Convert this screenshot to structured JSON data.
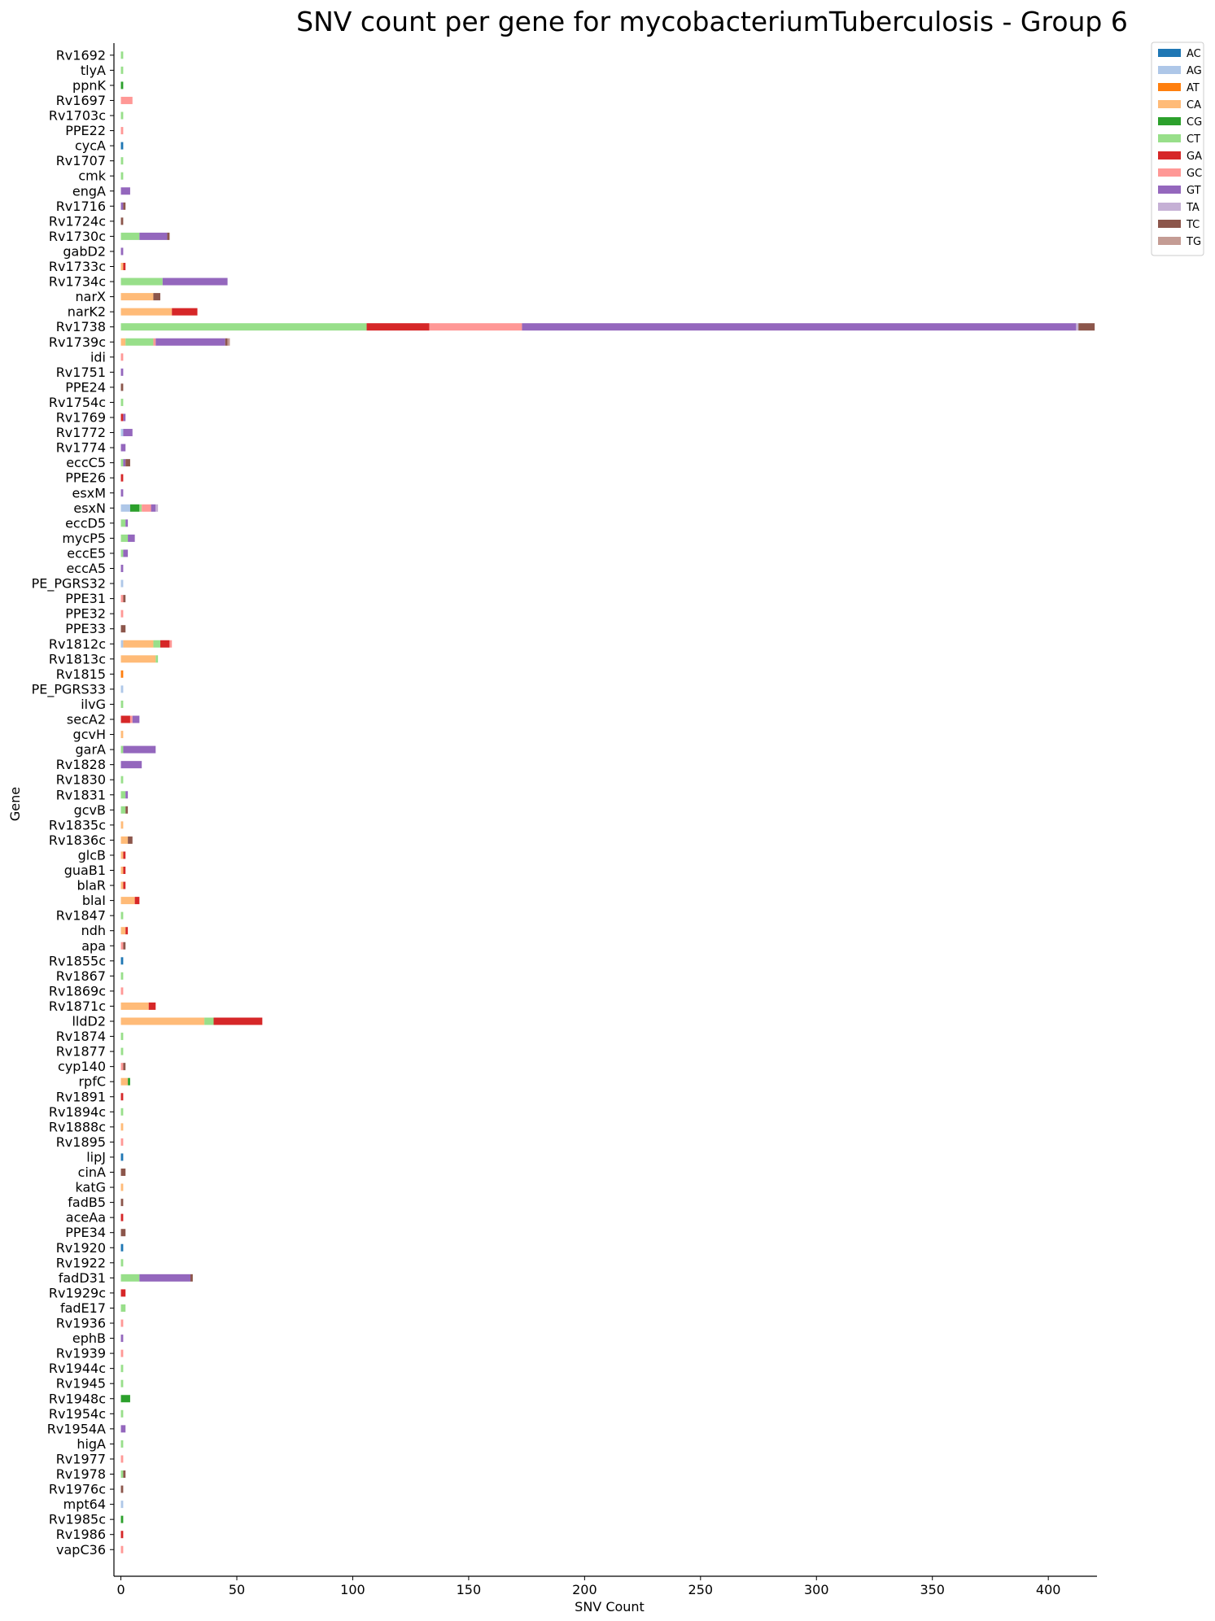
{
  "chart_data": {
    "type": "bar",
    "orientation": "horizontal",
    "stacked": true,
    "title": "SNV count per gene for mycobacteriumTuberculosis - Group 6",
    "xlabel": "SNV Count",
    "ylabel": "Gene",
    "xlim": [
      -3,
      421
    ],
    "xticks": [
      0,
      50,
      100,
      150,
      200,
      250,
      300,
      350,
      400
    ],
    "grid": false,
    "legend_position": "top-right",
    "series": [
      {
        "name": "AC",
        "color": "#1f77b4"
      },
      {
        "name": "AG",
        "color": "#aec7e8"
      },
      {
        "name": "AT",
        "color": "#ff7f0e"
      },
      {
        "name": "CA",
        "color": "#ffbb78"
      },
      {
        "name": "CG",
        "color": "#2ca02c"
      },
      {
        "name": "CT",
        "color": "#98df8a"
      },
      {
        "name": "GA",
        "color": "#d62728"
      },
      {
        "name": "GC",
        "color": "#ff9896"
      },
      {
        "name": "GT",
        "color": "#9467bd"
      },
      {
        "name": "TA",
        "color": "#c5b0d5"
      },
      {
        "name": "TC",
        "color": "#8c564b"
      },
      {
        "name": "TG",
        "color": "#c49c94"
      }
    ],
    "genes": [
      {
        "gene": "Rv1692",
        "counts": {
          "CT": 1
        }
      },
      {
        "gene": "tlyA",
        "counts": {
          "CT": 1
        }
      },
      {
        "gene": "ppnK",
        "counts": {
          "CG": 1
        }
      },
      {
        "gene": "Rv1697",
        "counts": {
          "GC": 5
        }
      },
      {
        "gene": "Rv1703c",
        "counts": {
          "CT": 1
        }
      },
      {
        "gene": "PPE22",
        "counts": {
          "GC": 1
        }
      },
      {
        "gene": "cycA",
        "counts": {
          "AC": 1
        }
      },
      {
        "gene": "Rv1707",
        "counts": {
          "CT": 1
        }
      },
      {
        "gene": "cmk",
        "counts": {
          "CT": 1
        }
      },
      {
        "gene": "engA",
        "counts": {
          "GT": 4
        }
      },
      {
        "gene": "Rv1716",
        "counts": {
          "GT": 1,
          "TC": 1
        }
      },
      {
        "gene": "Rv1724c",
        "counts": {
          "TC": 1
        }
      },
      {
        "gene": "Rv1730c",
        "counts": {
          "CT": 8,
          "TC": 1,
          "GT": 12
        }
      },
      {
        "gene": "gabD2",
        "counts": {
          "GT": 1
        }
      },
      {
        "gene": "Rv1733c",
        "counts": {
          "CA": 1,
          "GA": 1
        }
      },
      {
        "gene": "Rv1734c",
        "counts": {
          "CT": 18,
          "GT": 28
        }
      },
      {
        "gene": "narX",
        "counts": {
          "CA": 14,
          "TC": 3
        }
      },
      {
        "gene": "narK2",
        "counts": {
          "CA": 22,
          "GA": 11
        }
      },
      {
        "gene": "Rv1738",
        "counts": {
          "CT": 106,
          "GA": 27,
          "GC": 40,
          "GT": 239,
          "TA": 1,
          "TC": 7
        }
      },
      {
        "gene": "Rv1739c",
        "counts": {
          "CA": 2,
          "GC": 1,
          "CT": 12,
          "GT": 30,
          "TC": 1,
          "TG": 1
        }
      },
      {
        "gene": "idi",
        "counts": {
          "GC": 1
        }
      },
      {
        "gene": "Rv1751",
        "counts": {
          "GT": 1
        }
      },
      {
        "gene": "PPE24",
        "counts": {
          "TC": 1
        }
      },
      {
        "gene": "Rv1754c",
        "counts": {
          "CT": 1
        }
      },
      {
        "gene": "Rv1769",
        "counts": {
          "GA": 1,
          "GT": 1
        }
      },
      {
        "gene": "Rv1772",
        "counts": {
          "AG": 1,
          "GT": 4
        }
      },
      {
        "gene": "Rv1774",
        "counts": {
          "GT": 2
        }
      },
      {
        "gene": "eccC5",
        "counts": {
          "CT": 1,
          "GT": 1,
          "TC": 2
        }
      },
      {
        "gene": "PPE26",
        "counts": {
          "GA": 1
        }
      },
      {
        "gene": "esxM",
        "counts": {
          "GT": 1
        }
      },
      {
        "gene": "esxN",
        "counts": {
          "AG": 4,
          "CG": 4,
          "CT": 1,
          "GC": 4,
          "GT": 2,
          "TA": 1
        }
      },
      {
        "gene": "eccD5",
        "counts": {
          "CT": 2,
          "GT": 1
        }
      },
      {
        "gene": "mycP5",
        "counts": {
          "CT": 3,
          "GT": 3
        }
      },
      {
        "gene": "eccE5",
        "counts": {
          "CT": 1,
          "GT": 2
        }
      },
      {
        "gene": "eccA5",
        "counts": {
          "GT": 1
        }
      },
      {
        "gene": "PE_PGRS32",
        "counts": {
          "AG": 1
        }
      },
      {
        "gene": "PPE31",
        "counts": {
          "GC": 1,
          "TC": 1
        }
      },
      {
        "gene": "PPE32",
        "counts": {
          "GC": 1
        }
      },
      {
        "gene": "PPE33",
        "counts": {
          "TC": 2
        }
      },
      {
        "gene": "Rv1812c",
        "counts": {
          "AG": 1,
          "CA": 13,
          "CT": 3,
          "GA": 4,
          "GC": 1
        }
      },
      {
        "gene": "Rv1813c",
        "counts": {
          "CA": 15,
          "CT": 1
        }
      },
      {
        "gene": "Rv1815",
        "counts": {
          "AT": 1
        }
      },
      {
        "gene": "PE_PGRS33",
        "counts": {
          "AG": 1
        }
      },
      {
        "gene": "ilvG",
        "counts": {
          "CT": 1
        }
      },
      {
        "gene": "secA2",
        "counts": {
          "GC": 1,
          "GA": 4,
          "GT": 3
        }
      },
      {
        "gene": "gcvH",
        "counts": {
          "CA": 1
        }
      },
      {
        "gene": "garA",
        "counts": {
          "CT": 1,
          "GT": 14
        }
      },
      {
        "gene": "Rv1828",
        "counts": {
          "GT": 9
        }
      },
      {
        "gene": "Rv1830",
        "counts": {
          "CT": 1
        }
      },
      {
        "gene": "Rv1831",
        "counts": {
          "CT": 2,
          "GT": 1
        }
      },
      {
        "gene": "gcvB",
        "counts": {
          "CT": 2,
          "TC": 1
        }
      },
      {
        "gene": "Rv1835c",
        "counts": {
          "CA": 1
        }
      },
      {
        "gene": "Rv1836c",
        "counts": {
          "CA": 3,
          "TC": 2
        }
      },
      {
        "gene": "glcB",
        "counts": {
          "CA": 1,
          "GA": 1
        }
      },
      {
        "gene": "guaB1",
        "counts": {
          "CA": 1,
          "GA": 1
        }
      },
      {
        "gene": "blaR",
        "counts": {
          "CA": 1,
          "GA": 1
        }
      },
      {
        "gene": "blaI",
        "counts": {
          "CA": 6,
          "GA": 2
        }
      },
      {
        "gene": "Rv1847",
        "counts": {
          "CT": 1
        }
      },
      {
        "gene": "ndh",
        "counts": {
          "CA": 2,
          "GA": 1
        }
      },
      {
        "gene": "apa",
        "counts": {
          "GC": 1,
          "TC": 1
        }
      },
      {
        "gene": "Rv1855c",
        "counts": {
          "AC": 1
        }
      },
      {
        "gene": "Rv1867",
        "counts": {
          "CT": 1
        }
      },
      {
        "gene": "Rv1869c",
        "counts": {
          "GC": 1
        }
      },
      {
        "gene": "Rv1871c",
        "counts": {
          "CA": 12,
          "GA": 3
        }
      },
      {
        "gene": "lldD2",
        "counts": {
          "CA": 36,
          "CT": 4,
          "GA": 21
        }
      },
      {
        "gene": "Rv1874",
        "counts": {
          "CT": 1
        }
      },
      {
        "gene": "Rv1877",
        "counts": {
          "CT": 1
        }
      },
      {
        "gene": "cyp140",
        "counts": {
          "GC": 1,
          "TC": 1
        }
      },
      {
        "gene": "rpfC",
        "counts": {
          "CA": 3,
          "CG": 1
        }
      },
      {
        "gene": "Rv1891",
        "counts": {
          "GA": 1
        }
      },
      {
        "gene": "Rv1894c",
        "counts": {
          "CT": 1
        }
      },
      {
        "gene": "Rv1888c",
        "counts": {
          "CA": 1
        }
      },
      {
        "gene": "Rv1895",
        "counts": {
          "GC": 1
        }
      },
      {
        "gene": "lipJ",
        "counts": {
          "AC": 1
        }
      },
      {
        "gene": "cinA",
        "counts": {
          "TC": 2
        }
      },
      {
        "gene": "katG",
        "counts": {
          "CA": 1
        }
      },
      {
        "gene": "fadB5",
        "counts": {
          "TC": 1
        }
      },
      {
        "gene": "aceAa",
        "counts": {
          "GA": 1
        }
      },
      {
        "gene": "PPE34",
        "counts": {
          "TC": 2
        }
      },
      {
        "gene": "Rv1920",
        "counts": {
          "AC": 1
        }
      },
      {
        "gene": "Rv1922",
        "counts": {
          "CT": 1
        }
      },
      {
        "gene": "fadD31",
        "counts": {
          "CT": 8,
          "TC": 1,
          "GT": 22
        }
      },
      {
        "gene": "Rv1929c",
        "counts": {
          "GA": 2
        }
      },
      {
        "gene": "fadE17",
        "counts": {
          "CT": 2
        }
      },
      {
        "gene": "Rv1936",
        "counts": {
          "GC": 1
        }
      },
      {
        "gene": "ephB",
        "counts": {
          "GT": 1
        }
      },
      {
        "gene": "Rv1939",
        "counts": {
          "GC": 1
        }
      },
      {
        "gene": "Rv1944c",
        "counts": {
          "CT": 1
        }
      },
      {
        "gene": "Rv1945",
        "counts": {
          "CT": 1
        }
      },
      {
        "gene": "Rv1948c",
        "counts": {
          "CG": 4
        }
      },
      {
        "gene": "Rv1954c",
        "counts": {
          "CT": 1
        }
      },
      {
        "gene": "Rv1954A",
        "counts": {
          "GT": 2
        }
      },
      {
        "gene": "higA",
        "counts": {
          "CT": 1
        }
      },
      {
        "gene": "Rv1977",
        "counts": {
          "GC": 1
        }
      },
      {
        "gene": "Rv1978",
        "counts": {
          "CT": 1,
          "TC": 1
        }
      },
      {
        "gene": "Rv1976c",
        "counts": {
          "TC": 1
        }
      },
      {
        "gene": "mpt64",
        "counts": {
          "AG": 1
        }
      },
      {
        "gene": "Rv1985c",
        "counts": {
          "CG": 1
        }
      },
      {
        "gene": "Rv1986",
        "counts": {
          "GA": 1
        }
      },
      {
        "gene": "vapC36",
        "counts": {
          "GC": 1
        }
      }
    ]
  }
}
